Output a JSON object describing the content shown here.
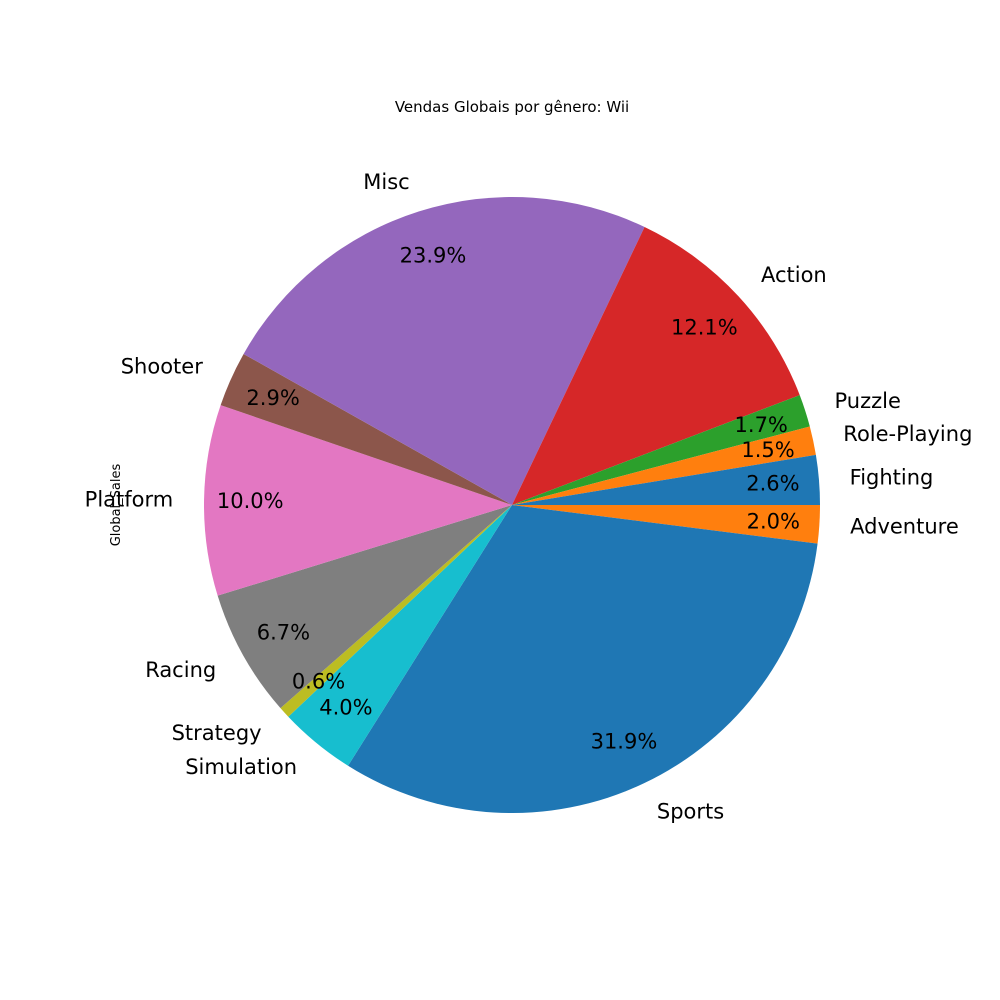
{
  "chart_data": {
    "type": "pie",
    "title": "Vendas Globais por gênero: Wii",
    "ylabel": "Global_Sales",
    "start_angle_deg": 0,
    "direction": "clockwise",
    "slices": [
      {
        "label": "Adventure",
        "pct_text": "2.0%",
        "value": 2.0,
        "color": "#ff7f0e"
      },
      {
        "label": "Sports",
        "pct_text": "31.9%",
        "value": 31.9,
        "color": "#1f77b4"
      },
      {
        "label": "Simulation",
        "pct_text": "4.0%",
        "value": 4.0,
        "color": "#17becf"
      },
      {
        "label": "Strategy",
        "pct_text": "0.6%",
        "value": 0.6,
        "color": "#bcbd22"
      },
      {
        "label": "Racing",
        "pct_text": "6.7%",
        "value": 6.7,
        "color": "#7f7f7f"
      },
      {
        "label": "Platform",
        "pct_text": "10.0%",
        "value": 10.0,
        "color": "#e377c2"
      },
      {
        "label": "Shooter",
        "pct_text": "2.9%",
        "value": 2.9,
        "color": "#8c564b"
      },
      {
        "label": "Misc",
        "pct_text": "23.9%",
        "value": 23.9,
        "color": "#9467bd"
      },
      {
        "label": "Action",
        "pct_text": "12.1%",
        "value": 12.1,
        "color": "#d62728"
      },
      {
        "label": "Puzzle",
        "pct_text": "1.7%",
        "value": 1.7,
        "color": "#2ca02c"
      },
      {
        "label": "Role-Playing",
        "pct_text": "1.5%",
        "value": 1.5,
        "color": "#ff7f0e"
      },
      {
        "label": "Fighting",
        "pct_text": "2.6%",
        "value": 2.6,
        "color": "#1f77b4"
      }
    ]
  }
}
